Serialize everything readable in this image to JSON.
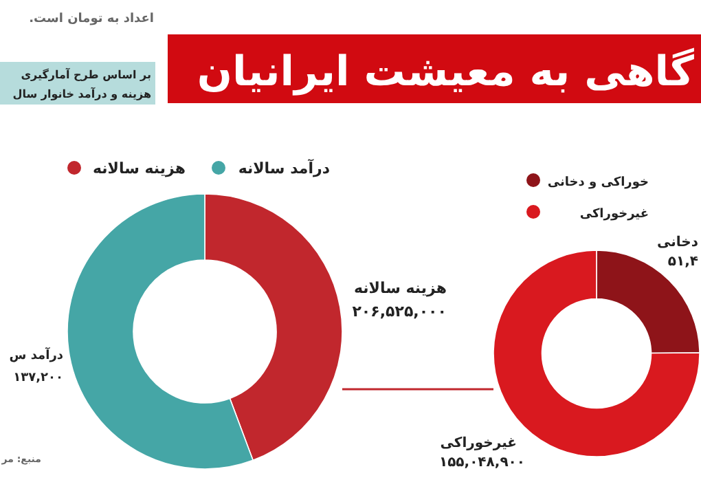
{
  "chart_data": [
    {
      "type": "donut",
      "title": "گاهی به معیشت ایرانیان",
      "categories": [
        "هزینه سالانه",
        "درآمد سالانه"
      ],
      "values": [
        44.3,
        55.7
      ],
      "colors": [
        "#c1272d",
        "#45a6a6"
      ],
      "legend": "top",
      "annotations": [
        "اعداد به تومان است.",
        "بر اساس طرح آمارگیری",
        "هزینه و درآمد خانوار سال",
        "درآمد س",
        "۱۳۷,۲۰۰",
        "هزینه سالانه",
        "۲۰۶,۵۲۵,۰۰۰",
        "منبع: مر"
      ]
    },
    {
      "type": "donut",
      "categories": [
        "خوراکی و دخانی",
        "غیرخوراکی"
      ],
      "values": [
        24.9,
        75.1
      ],
      "colors": [
        "#8e1419",
        "#d9191f"
      ],
      "legend": "top",
      "annotations": [
        "دخانی",
        "۵۱,۴",
        "غیرخوراکی",
        "۱۵۵,۰۴۸,۹۰۰"
      ]
    }
  ]
}
